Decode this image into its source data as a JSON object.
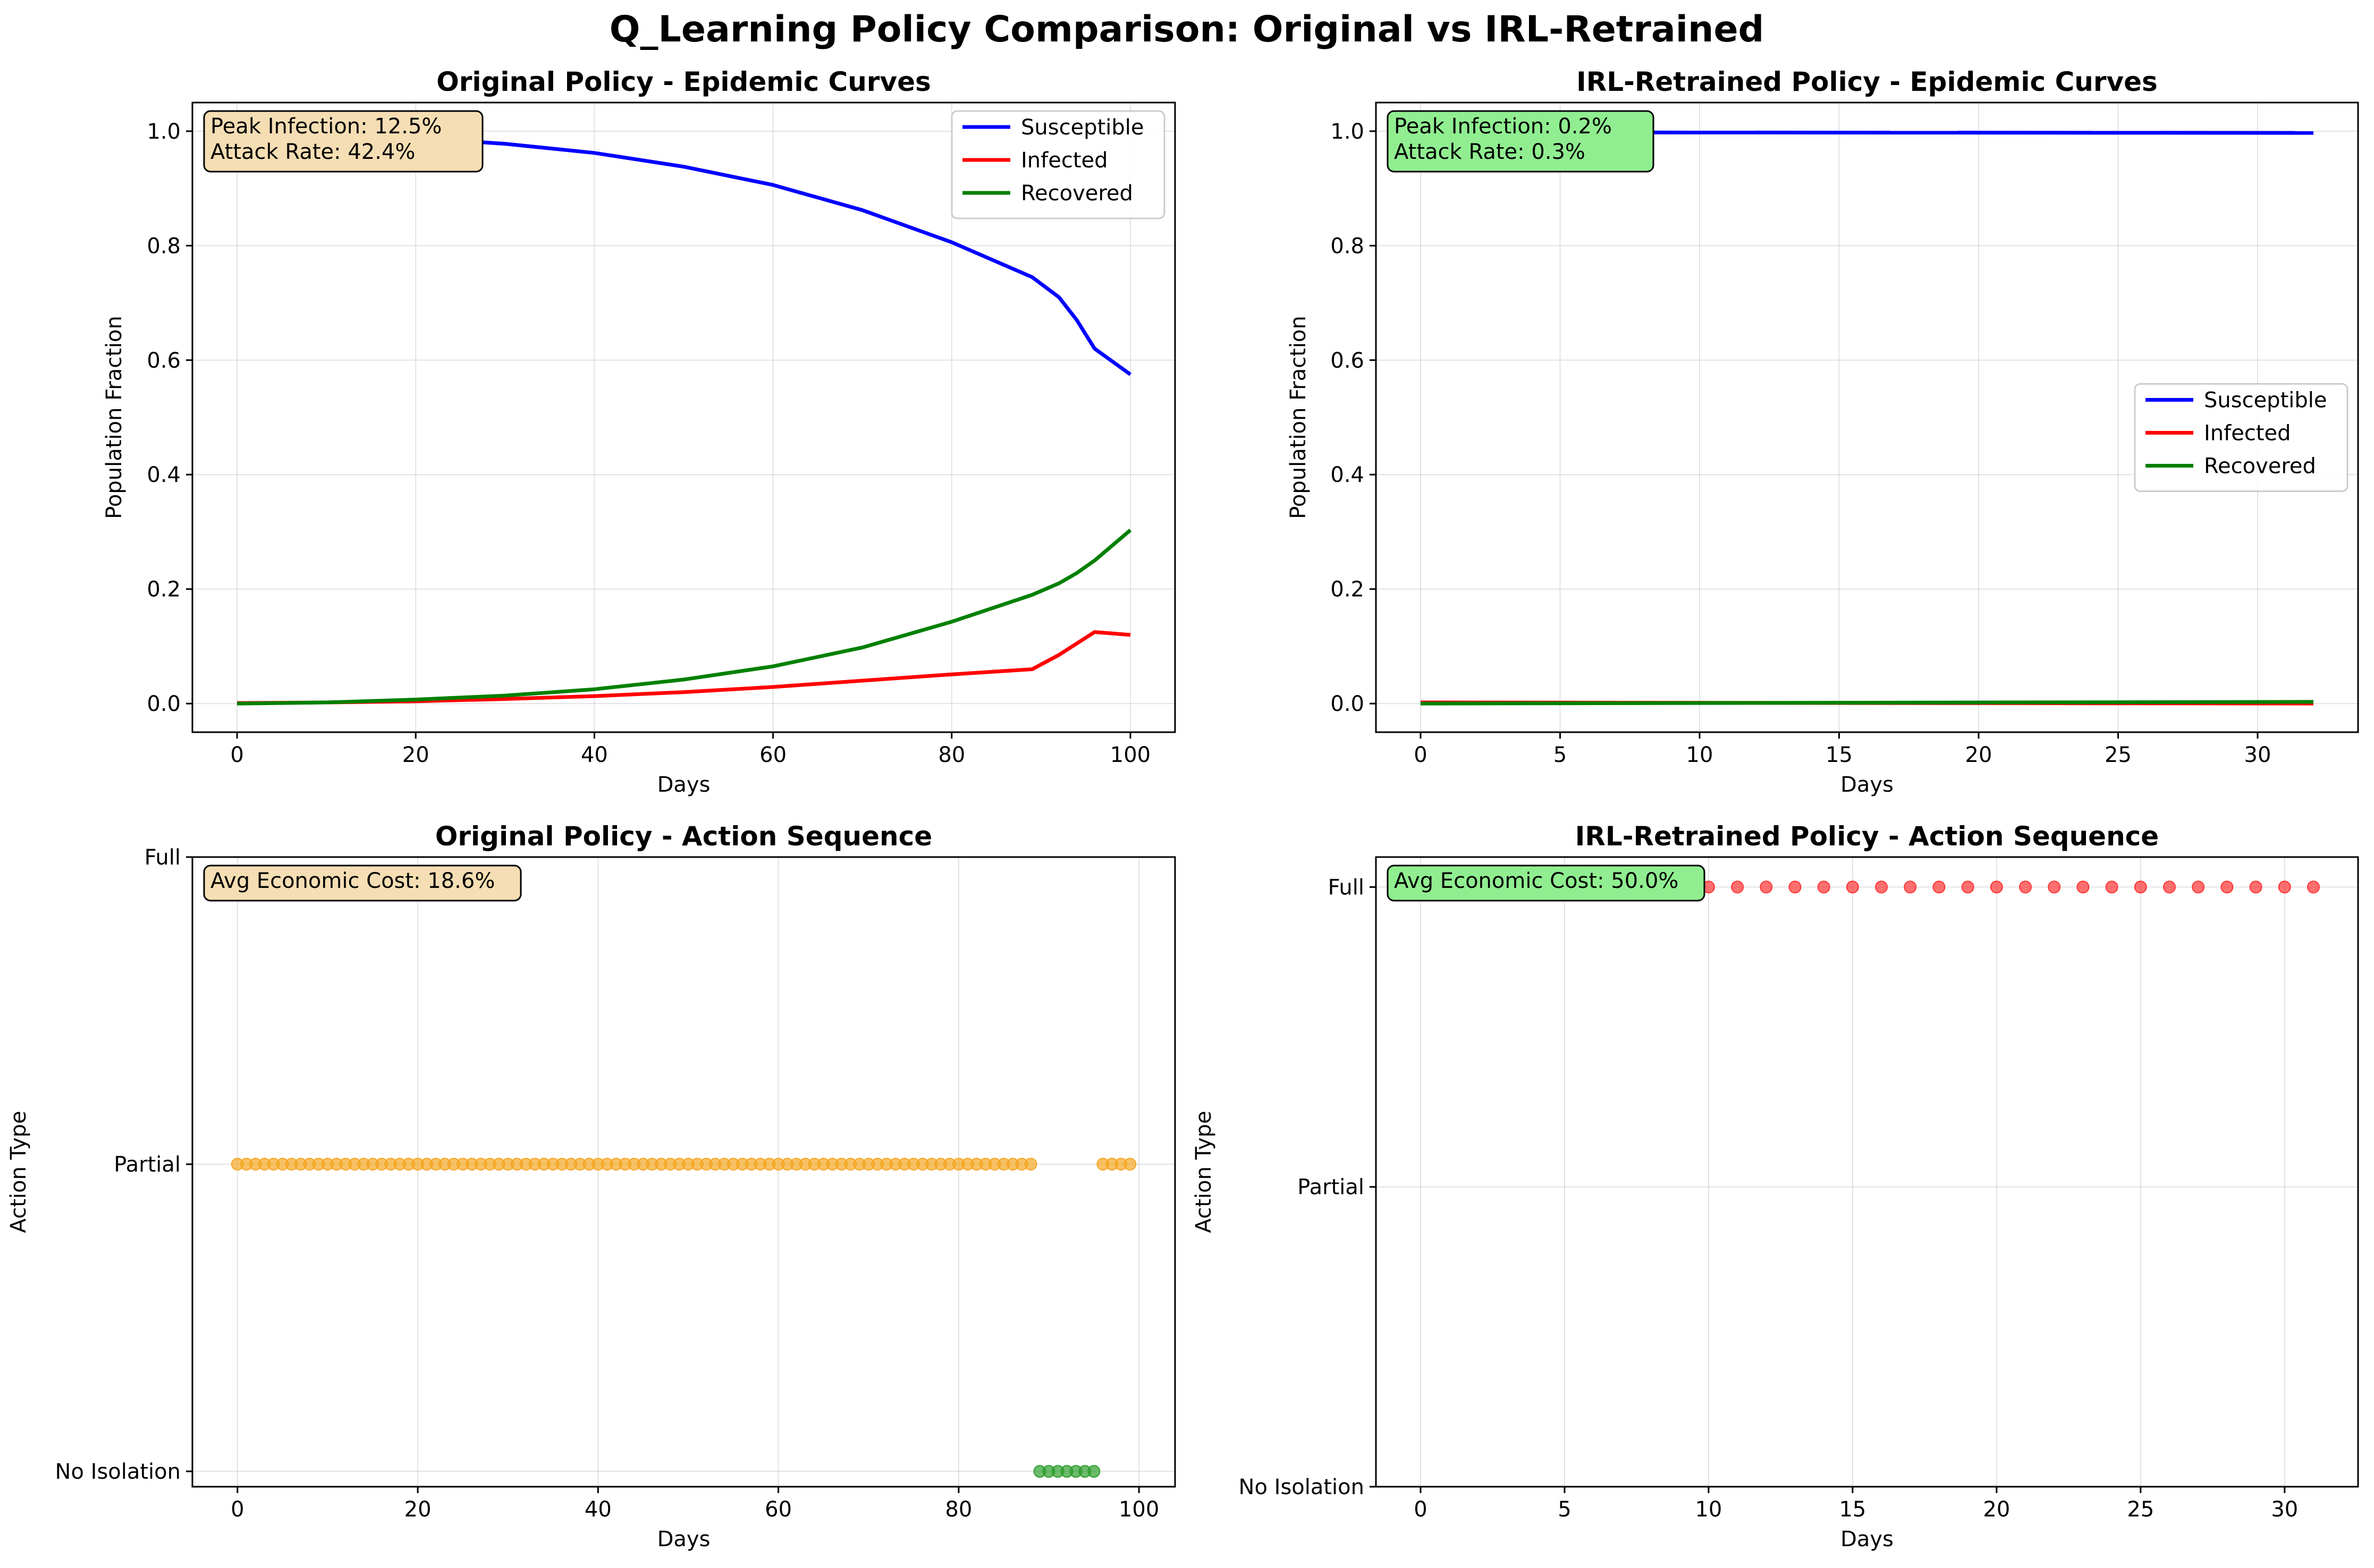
{
  "figure_title": "Q_Learning Policy Comparison: Original vs IRL-Retrained",
  "colors": {
    "susceptible": "#0000ff",
    "infected": "#ff0000",
    "recovered": "#008000",
    "partial": "#f5a623",
    "no_isolation": "#2e9e2e",
    "full": "#ff3333",
    "annot_orig_bg": "#f5deb3",
    "annot_irl_bg": "#90ee90"
  },
  "chart_data": [
    {
      "id": "orig_epi",
      "type": "line",
      "title": "Original Policy - Epidemic Curves",
      "xlabel": "Days",
      "ylabel": "Population Fraction",
      "xlim": [
        -5,
        105
      ],
      "ylim": [
        -0.05,
        1.05
      ],
      "xticks": [
        0,
        20,
        40,
        60,
        80,
        100
      ],
      "yticks": [
        0.0,
        0.2,
        0.4,
        0.6,
        0.8,
        1.0
      ],
      "ytick_labels": [
        "0.0",
        "0.2",
        "0.4",
        "0.6",
        "0.8",
        "1.0"
      ],
      "grid": true,
      "legend": "upper right",
      "annotation": [
        "Peak Infection: 12.5%",
        "Attack Rate: 42.4%"
      ],
      "series": [
        {
          "name": "Susceptible",
          "color": "#0000ff",
          "x": [
            0,
            10,
            20,
            30,
            40,
            50,
            60,
            70,
            80,
            89,
            92,
            94,
            96,
            100
          ],
          "y": [
            0.998,
            0.994,
            0.988,
            0.978,
            0.962,
            0.938,
            0.906,
            0.862,
            0.806,
            0.745,
            0.71,
            0.67,
            0.62,
            0.575
          ]
        },
        {
          "name": "Infected",
          "color": "#ff0000",
          "x": [
            0,
            10,
            20,
            30,
            40,
            50,
            60,
            70,
            80,
            89,
            92,
            96,
            100
          ],
          "y": [
            0.001,
            0.002,
            0.004,
            0.008,
            0.013,
            0.02,
            0.029,
            0.04,
            0.051,
            0.06,
            0.085,
            0.125,
            0.12
          ]
        },
        {
          "name": "Recovered",
          "color": "#008000",
          "x": [
            0,
            10,
            20,
            30,
            40,
            50,
            60,
            70,
            80,
            89,
            92,
            94,
            96,
            100
          ],
          "y": [
            0.0,
            0.002,
            0.007,
            0.014,
            0.025,
            0.042,
            0.065,
            0.098,
            0.143,
            0.19,
            0.21,
            0.228,
            0.25,
            0.303
          ]
        }
      ]
    },
    {
      "id": "irl_epi",
      "type": "line",
      "title": "IRL-Retrained Policy - Epidemic Curves",
      "xlabel": "Days",
      "ylabel": "Population Fraction",
      "xlim": [
        -1.6,
        33.6
      ],
      "ylim": [
        -0.05,
        1.05
      ],
      "xticks": [
        0,
        5,
        10,
        15,
        20,
        25,
        30
      ],
      "yticks": [
        0.0,
        0.2,
        0.4,
        0.6,
        0.8,
        1.0
      ],
      "ytick_labels": [
        "0.0",
        "0.2",
        "0.4",
        "0.6",
        "0.8",
        "1.0"
      ],
      "grid": true,
      "legend": "center right",
      "annotation": [
        "Peak Infection: 0.2%",
        "Attack Rate: 0.3%"
      ],
      "series": [
        {
          "name": "Susceptible",
          "color": "#0000ff",
          "x": [
            0,
            32
          ],
          "y": [
            0.998,
            0.997
          ]
        },
        {
          "name": "Infected",
          "color": "#ff0000",
          "x": [
            0,
            32
          ],
          "y": [
            0.002,
            0.0
          ]
        },
        {
          "name": "Recovered",
          "color": "#008000",
          "x": [
            0,
            32
          ],
          "y": [
            0.0,
            0.003
          ]
        }
      ]
    },
    {
      "id": "orig_act",
      "type": "scatter",
      "title": "Original Policy - Action Sequence",
      "xlabel": "Days",
      "ylabel": "Action Type",
      "xlim": [
        -5,
        104
      ],
      "ylim": [
        -0.05,
        2.0
      ],
      "xticks": [
        0,
        20,
        40,
        60,
        80,
        100
      ],
      "yticks": [
        0,
        1,
        2
      ],
      "ytick_labels": [
        "No Isolation",
        "Partial",
        "Full"
      ],
      "grid": true,
      "annotation": [
        "Avg Economic Cost: 18.6%"
      ],
      "series": [
        {
          "name": "Partial",
          "color": "#f5a623",
          "y_level": 1,
          "x_ranges": [
            [
              0,
              88
            ],
            [
              96,
              99
            ]
          ]
        },
        {
          "name": "No Isolation",
          "color": "#2e9e2e",
          "y_level": 0,
          "x_ranges": [
            [
              89,
              95
            ]
          ]
        }
      ]
    },
    {
      "id": "irl_act",
      "type": "scatter",
      "title": "IRL-Retrained Policy - Action Sequence",
      "xlabel": "Days",
      "ylabel": "Action Type",
      "xlim": [
        -1.55,
        32.55
      ],
      "ylim": [
        0,
        2.1
      ],
      "xticks": [
        0,
        5,
        10,
        15,
        20,
        25,
        30
      ],
      "yticks": [
        0,
        1,
        2
      ],
      "ytick_labels": [
        "No Isolation",
        "Partial",
        "Full"
      ],
      "grid": true,
      "annotation": [
        "Avg Economic Cost: 50.0%"
      ],
      "series": [
        {
          "name": "Full",
          "color": "#ff3333",
          "y_level": 2,
          "x_ranges": [
            [
              0,
              31
            ]
          ]
        }
      ]
    }
  ]
}
